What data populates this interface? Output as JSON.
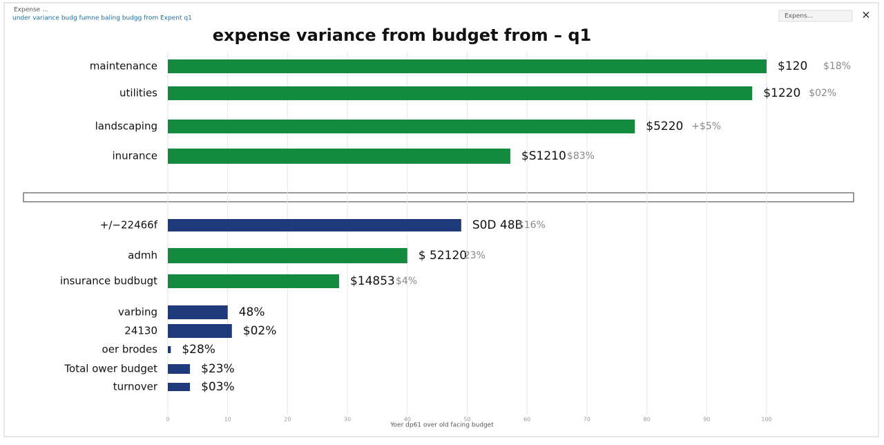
{
  "window": {
    "title": "Expense ...",
    "search": "Expens...",
    "close": "×"
  },
  "subtitle": "under variance budg  fumne baling budgg   from   Expent q1",
  "footer": "Yoer dp61 over old facing budget",
  "chart_data": {
    "type": "bar",
    "orientation": "horizontal",
    "title": "expense variance from budget from  – q1",
    "categories": [
      "maintenance",
      "utilities",
      "landscaping",
      "inurance",
      "+/−22466f",
      "admh",
      "insurance budbugt",
      "varbing",
      "24130",
      "oer brodes",
      "Total ower budget",
      "turnover"
    ],
    "values": [
      100,
      97.6,
      78,
      57.2,
      49,
      40,
      28.6,
      10,
      10.7,
      0.5,
      3.7,
      3.7
    ],
    "colors": [
      "#138a3e",
      "#138a3e",
      "#138a3e",
      "#138a3e",
      "#1f3a7a",
      "#138a3e",
      "#138a3e",
      "#1f3a7a",
      "#1f3a7a",
      "#1f3a7a",
      "#1f3a7a",
      "#1f3a7a"
    ],
    "amount_labels": [
      "$120",
      "$1220",
      "$5220",
      "$S1210",
      "S0D 48B",
      "$ 52120",
      "$14853",
      "48%",
      "$02%",
      "$28%",
      "$23%",
      "$03%"
    ],
    "variance_labels": [
      "$18%",
      "$02%",
      "+$5%",
      "$83%",
      "$16%",
      "23%",
      "$4%",
      "",
      "",
      "",
      "",
      ""
    ],
    "xlim": [
      0,
      100
    ],
    "xticks": [
      0,
      10,
      20,
      30,
      40,
      50,
      60,
      70,
      80,
      90,
      100
    ],
    "grid": true
  }
}
